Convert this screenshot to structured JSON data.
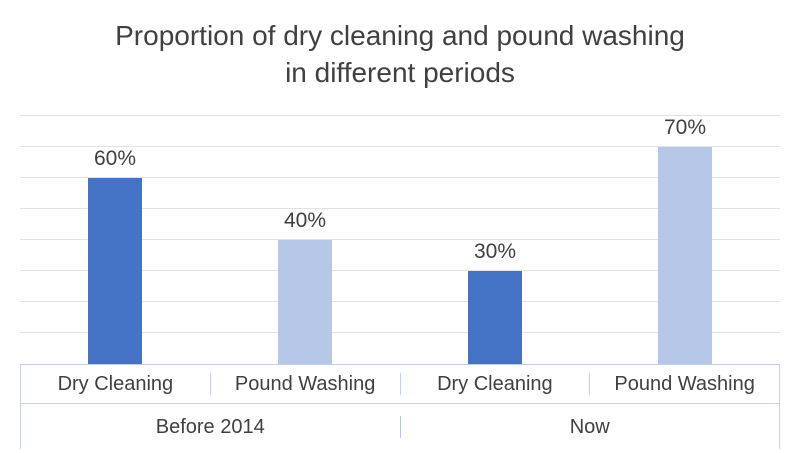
{
  "title": {
    "text": "Proportion of dry cleaning and pound washing in different periods"
  },
  "chart_data": {
    "type": "bar",
    "title": "Proportion of dry cleaning and pound washing in different periods",
    "categories": [
      "Dry Cleaning",
      "Pound Washing",
      "Dry Cleaning",
      "Pound Washing"
    ],
    "groups": [
      {
        "label": "Before 2014",
        "bars": [
          {
            "category": "Dry Cleaning",
            "value": 60,
            "data_label": "60%",
            "color": "#4472c4"
          },
          {
            "category": "Pound Washing",
            "value": 40,
            "data_label": "40%",
            "color": "#b6c7e8"
          }
        ]
      },
      {
        "label": "Now",
        "bars": [
          {
            "category": "Dry Cleaning",
            "value": 30,
            "data_label": "30%",
            "color": "#4472c4"
          },
          {
            "category": "Pound Washing",
            "value": 70,
            "data_label": "70%",
            "color": "#b6c7e8"
          }
        ]
      }
    ],
    "ylim": [
      0,
      80
    ],
    "grid_step": 10,
    "grid": true,
    "legend": "none",
    "xlabel": "",
    "ylabel": "",
    "colors": {
      "dry_cleaning_bar": "#4472c4",
      "pound_washing_bar": "#b6c7e8",
      "gridline": "#e2e2e2",
      "axis_line": "#bfcde9",
      "text": "#404040"
    }
  }
}
